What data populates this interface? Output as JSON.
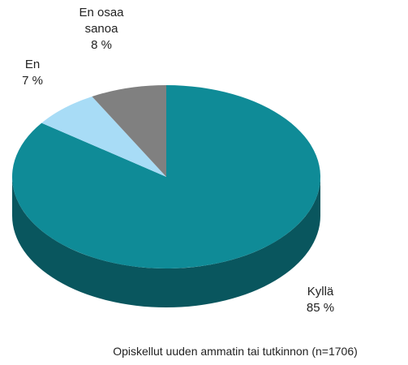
{
  "chart_data": {
    "type": "pie",
    "title": "Opiskellut uuden ammatin tai tutkinnon (n=1706)",
    "categories": [
      "Kyllä",
      "En",
      "En osaa sanoa"
    ],
    "values": [
      85,
      7,
      8
    ],
    "value_labels": [
      "85 %",
      "7 %",
      "8 %"
    ],
    "colors": [
      "#0f8b97",
      "#a8dcf6",
      "#808080"
    ]
  }
}
